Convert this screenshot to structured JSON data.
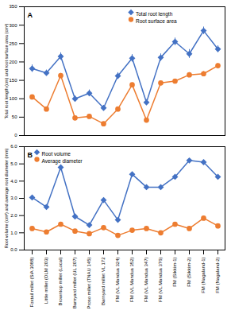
{
  "chart_data": [
    {
      "type": "line",
      "panel": "A",
      "categories": [
        "Foxtail millet (SiA 3088)",
        "Little millet (OLM 203)",
        "Browntop millet (Local)",
        "Barnyard millet (UL 207)",
        "Proso millet (TNAU 145)",
        "Barnyard millet VL 172",
        "FM (VL Mandua 324)",
        "FM (VL Mandua 352)",
        "FM (VL Mandua 347)",
        "FM (VL Mandua 376)",
        "FM (Sikkim-1)",
        "FM (Sikkim-2)",
        "FM (Nagaland-1)",
        "FM (Nagaland-2)"
      ],
      "y_label": "Total root length (cm) and root surface area (cm²)",
      "ylim": [
        0,
        350
      ],
      "yticks": [
        0,
        50,
        100,
        150,
        200,
        250,
        300,
        350
      ],
      "tick_labels": "y",
      "grid": false,
      "legend": "top",
      "series": [
        {
          "name": "Total root length",
          "color": "#4472c4",
          "marker": "diamond",
          "values": [
            182,
            170,
            215,
            100,
            115,
            75,
            162,
            210,
            90,
            212,
            255,
            222,
            285,
            235
          ],
          "errors": [
            10,
            8,
            10,
            8,
            9,
            7,
            9,
            10,
            8,
            10,
            10,
            12,
            10,
            9
          ]
        },
        {
          "name": "Root surface area",
          "color": "#ed7d31",
          "marker": "circle",
          "values": [
            105,
            72,
            163,
            48,
            52,
            32,
            72,
            138,
            42,
            143,
            148,
            165,
            168,
            190
          ],
          "errors": [
            5,
            4,
            6,
            3,
            4,
            3,
            4,
            5,
            3,
            5,
            5,
            6,
            6,
            6
          ]
        }
      ]
    },
    {
      "type": "line",
      "panel": "B",
      "categories": [
        "Foxtail millet (SiA 3088)",
        "Little millet (OLM 203)",
        "Browntop millet (Local)",
        "Barnyard millet (UL 207)",
        "Proso millet (TNAU 145)",
        "Barnyard millet VL 172",
        "FM (VL Mandua 324)",
        "FM (VL Mandua 352)",
        "FM (VL Mandua 347)",
        "FM (VL Mandua 376)",
        "FM (Sikkim-1)",
        "FM (Sikkim-2)",
        "FM (Nagaland-1)",
        "FM (Nagaland-2)"
      ],
      "y_label": "Root volume (cm³) and average root diameter (mm)",
      "ylim": [
        0,
        6
      ],
      "yticks": [
        0,
        1,
        2,
        3,
        4,
        5,
        6
      ],
      "grid": false,
      "legend": "top-left",
      "series": [
        {
          "name": "Root volume",
          "color": "#4472c4",
          "marker": "diamond",
          "values": [
            3.05,
            2.5,
            4.8,
            1.95,
            1.45,
            2.9,
            1.75,
            4.4,
            3.65,
            3.65,
            4.25,
            5.2,
            5.1,
            4.25
          ],
          "errors": [
            0.08,
            0.07,
            0.1,
            0.06,
            0.06,
            0.08,
            0.06,
            0.1,
            0.08,
            0.08,
            0.1,
            0.1,
            0.1,
            0.08
          ]
        },
        {
          "name": "Average diameter",
          "color": "#ed7d31",
          "marker": "circle",
          "values": [
            1.25,
            1.05,
            1.5,
            1.1,
            0.95,
            1.3,
            0.85,
            1.15,
            1.25,
            1.0,
            1.5,
            1.25,
            1.85,
            1.4
          ],
          "errors": [
            0.05,
            0.04,
            0.06,
            0.04,
            0.04,
            0.05,
            0.04,
            0.05,
            0.05,
            0.04,
            0.06,
            0.05,
            0.06,
            0.05
          ]
        }
      ]
    }
  ]
}
